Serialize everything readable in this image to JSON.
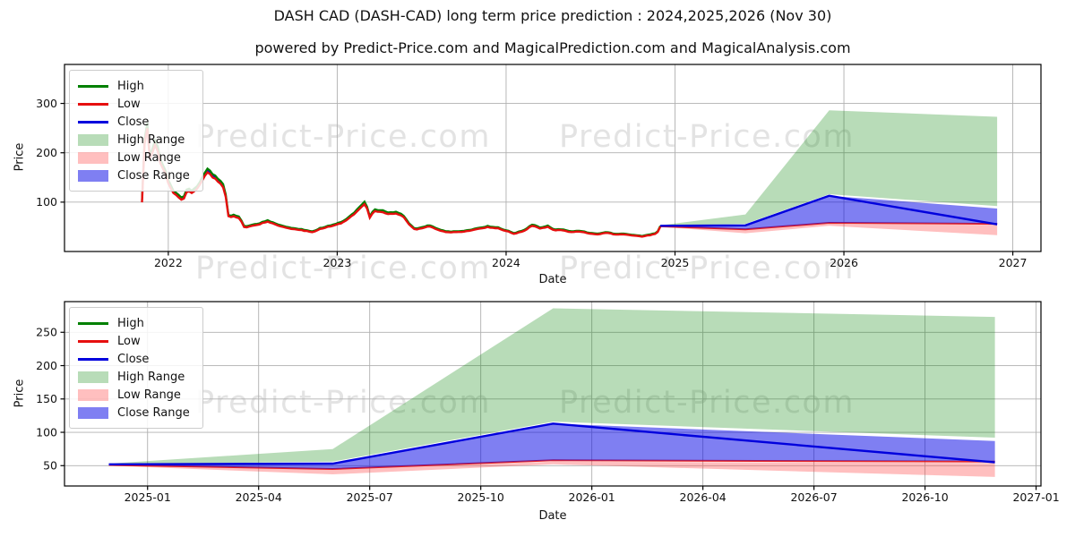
{
  "title": "DASH CAD (DASH-CAD) long term price prediction : 2024,2025,2026 (Nov 30)",
  "subtitle": "powered by Predict-Price.com and MagicalPrediction.com and MagicalAnalysis.com",
  "watermark": {
    "text": "Predict-Price.com"
  },
  "colors": {
    "high_line": "#008000",
    "low_line": "#e60f0f",
    "close_line": "#0000dd",
    "high_range_fill": "#008000",
    "high_range_opacity": 0.28,
    "low_range_fill": "#ff2a2a",
    "low_range_opacity": 0.3,
    "close_range_fill": "#0000e6",
    "close_range_opacity": 0.5,
    "grid": "#b0b0b0",
    "spine": "#000000"
  },
  "legend": {
    "items": [
      {
        "label": "High",
        "key": "high_line",
        "type": "line"
      },
      {
        "label": "Low",
        "key": "low_line",
        "type": "line"
      },
      {
        "label": "Close",
        "key": "close_line",
        "type": "line"
      },
      {
        "label": "High Range",
        "key": "high_range",
        "type": "patch"
      },
      {
        "label": "Low Range",
        "key": "low_range",
        "type": "patch"
      },
      {
        "label": "Close Range",
        "key": "close_range",
        "type": "patch"
      }
    ]
  },
  "chart_data": [
    {
      "type": "line",
      "name": "full-history-and-forecast",
      "xlabel": "Date",
      "ylabel": "Price",
      "x_ticks": [
        "2022",
        "2023",
        "2024",
        "2025",
        "2026",
        "2027"
      ],
      "y_ticks": [
        100,
        200,
        300
      ],
      "ylim": [
        0,
        379
      ],
      "xlim": [
        "2021-05-20",
        "2027-03-01"
      ],
      "grid": true,
      "legend_position": "upper-left",
      "historical": {
        "series_note": "daily High/Low/Close, jagged; High ~2-5% above Close, Low ~2-5% below",
        "dates": [
          "2021-11-05",
          "2021-11-09",
          "2021-11-13",
          "2021-11-17",
          "2021-11-22",
          "2021-11-28",
          "2021-12-04",
          "2021-12-10",
          "2021-12-16",
          "2021-12-24",
          "2022-01-02",
          "2022-01-10",
          "2022-01-20",
          "2022-02-02",
          "2022-02-12",
          "2022-02-22",
          "2022-03-06",
          "2022-03-16",
          "2022-03-26",
          "2022-04-06",
          "2022-04-18",
          "2022-05-01",
          "2022-05-10",
          "2022-05-20",
          "2022-06-04",
          "2022-06-14",
          "2022-06-28",
          "2022-07-14",
          "2022-08-02",
          "2022-08-24",
          "2022-09-14",
          "2022-10-06",
          "2022-10-26",
          "2022-11-10",
          "2022-11-24",
          "2022-12-10",
          "2022-12-26",
          "2023-01-08",
          "2023-01-22",
          "2023-02-06",
          "2023-02-20",
          "2023-03-02",
          "2023-03-10",
          "2023-03-20",
          "2023-04-04",
          "2023-04-20",
          "2023-05-06",
          "2023-05-22",
          "2023-06-08",
          "2023-06-18",
          "2023-07-04",
          "2023-07-20",
          "2023-08-08",
          "2023-08-28",
          "2023-09-18",
          "2023-10-10",
          "2023-11-02",
          "2023-11-22",
          "2023-12-12",
          "2024-01-04",
          "2024-01-18",
          "2024-02-08",
          "2024-02-28",
          "2024-03-14",
          "2024-03-30",
          "2024-04-14",
          "2024-05-02",
          "2024-05-20",
          "2024-06-08",
          "2024-06-28",
          "2024-07-18",
          "2024-08-06",
          "2024-08-24",
          "2024-09-12",
          "2024-10-02",
          "2024-10-20",
          "2024-11-08",
          "2024-11-22",
          "2024-11-30"
        ],
        "close": [
          105,
          170,
          310,
          250,
          195,
          210,
          235,
          205,
          185,
          170,
          142,
          128,
          118,
          108,
          130,
          124,
          138,
          155,
          172,
          160,
          148,
          136,
          70,
          76,
          70,
          50,
          54,
          58,
          64,
          56,
          50,
          47,
          44,
          41,
          48,
          52,
          56,
          60,
          68,
          78,
          92,
          103,
          72,
          86,
          85,
          80,
          82,
          74,
          54,
          46,
          51,
          54,
          45,
          41,
          41,
          44,
          48,
          52,
          50,
          43,
          38,
          43,
          56,
          49,
          53,
          45,
          46,
          41,
          43,
          38,
          37,
          40,
          36,
          37,
          34,
          32,
          35,
          38,
          51
        ]
      },
      "prediction": {
        "dates": [
          "2024-11-30",
          "2025-06-01",
          "2025-11-30",
          "2026-11-28"
        ],
        "close": [
          52,
          53,
          113,
          55
        ],
        "low": [
          51,
          45,
          58,
          56
        ],
        "high_range": {
          "lower": [
            52,
            56,
            116,
            92
          ],
          "upper": [
            53,
            75,
            286,
            273
          ]
        },
        "close_range": {
          "lower": [
            51,
            45,
            58,
            57
          ],
          "upper": [
            52.5,
            54,
            113,
            87
          ]
        },
        "low_range": {
          "lower": [
            50,
            37,
            52,
            33
          ],
          "upper": [
            51,
            45,
            56,
            54
          ]
        }
      }
    },
    {
      "type": "line",
      "name": "forecast-detail",
      "xlabel": "Date",
      "ylabel": "Price",
      "x_ticks": [
        "2025-01",
        "2025-04",
        "2025-07",
        "2025-10",
        "2026-01",
        "2026-04",
        "2026-07",
        "2026-10",
        "2027-01"
      ],
      "y_ticks": [
        50,
        100,
        150,
        200,
        250
      ],
      "ylim": [
        19.5,
        296
      ],
      "xlim": [
        "2024-10-24",
        "2027-01-05"
      ],
      "grid": true,
      "legend_position": "upper-left",
      "prediction": {
        "dates": [
          "2024-11-30",
          "2025-06-01",
          "2025-11-30",
          "2026-11-28"
        ],
        "close": [
          52,
          53,
          113,
          55
        ],
        "low": [
          51,
          45,
          58,
          56
        ],
        "high_range": {
          "lower": [
            52,
            56,
            116,
            92
          ],
          "upper": [
            53,
            75,
            286,
            273
          ]
        },
        "close_range": {
          "lower": [
            51,
            45,
            58,
            57
          ],
          "upper": [
            52.5,
            54,
            113,
            87
          ]
        },
        "low_range": {
          "lower": [
            50,
            37,
            52,
            33
          ],
          "upper": [
            51,
            45,
            56,
            54
          ]
        }
      }
    }
  ]
}
